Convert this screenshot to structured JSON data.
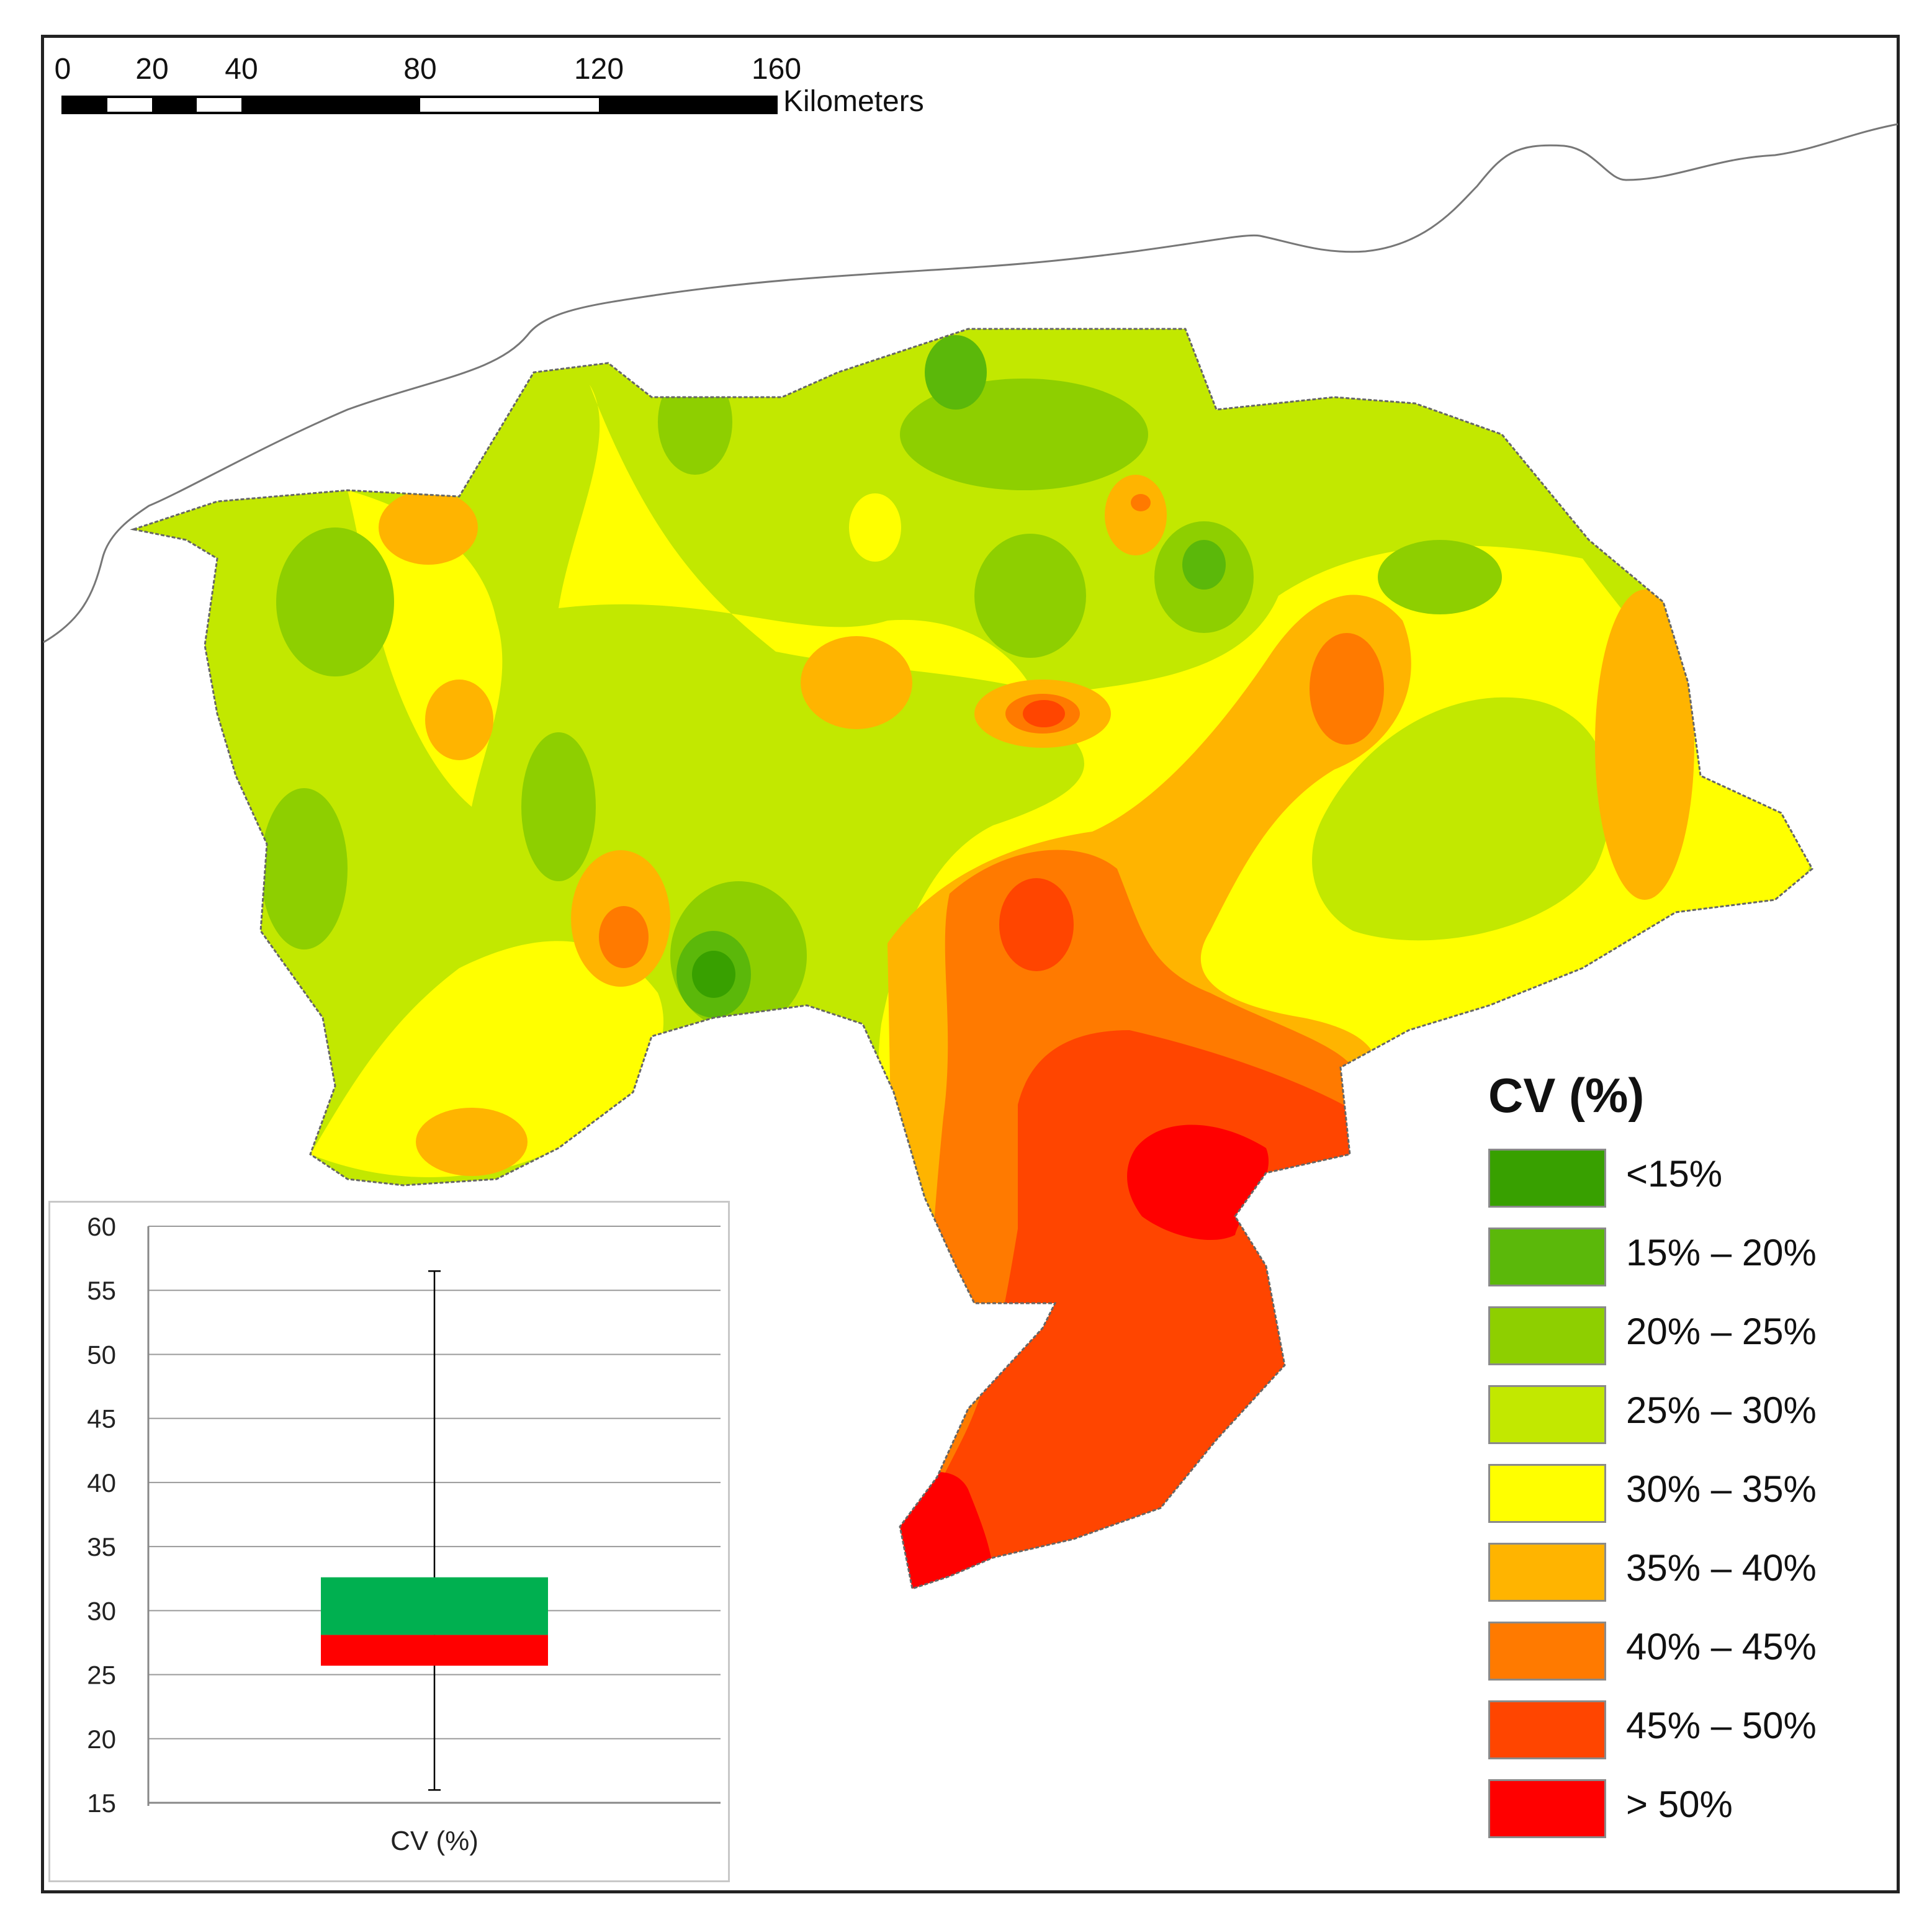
{
  "scale_bar": {
    "ticks": [
      "0",
      "20",
      "40",
      "80",
      "120",
      "160"
    ],
    "unit": "Kilometers"
  },
  "legend": {
    "title": "CV (%)",
    "items": [
      {
        "label": "<15%",
        "color": "#38a000"
      },
      {
        "label": "15% – 20%",
        "color": "#5bb80a"
      },
      {
        "label": "20% – 25%",
        "color": "#8ecf00"
      },
      {
        "label": "25% – 30%",
        "color": "#c2e800"
      },
      {
        "label": "30% – 35%",
        "color": "#ffff00"
      },
      {
        "label": "35% – 40%",
        "color": "#ffb400"
      },
      {
        "label": "40% – 45%",
        "color": "#ff7a00"
      },
      {
        "label": "45% – 50%",
        "color": "#ff4500"
      },
      {
        "label": "> 50%",
        "color": "#ff0000"
      }
    ]
  },
  "chart_data": {
    "type": "box",
    "categories": [
      "CV (%)"
    ],
    "y_ticks": [
      "15",
      "20",
      "25",
      "30",
      "35",
      "40",
      "45",
      "50",
      "55",
      "60"
    ],
    "ylim": [
      15,
      60
    ],
    "min": 16,
    "q1": 25.7,
    "median": 28.1,
    "q3": 32.6,
    "max": 56.5,
    "colors": {
      "upper_box": "#00b050",
      "lower_box": "#ff0000"
    },
    "grid": true
  }
}
